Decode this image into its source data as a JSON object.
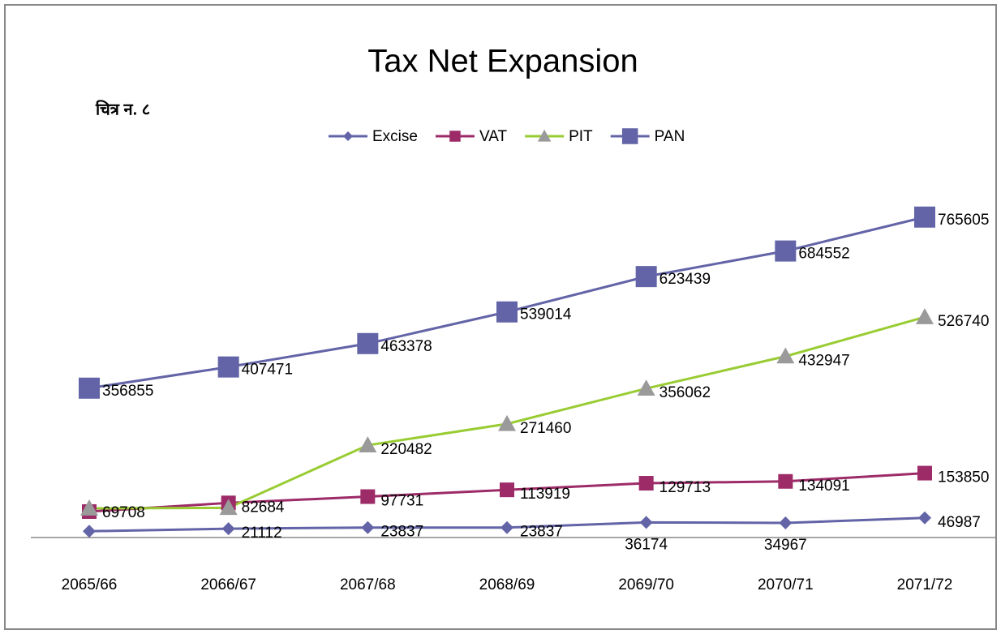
{
  "chart_data": {
    "type": "line",
    "title": "Tax Net Expansion",
    "annotation": "चित्र न. ८",
    "categories": [
      "2065/66",
      "2066/67",
      "2067/68",
      "2068/69",
      "2069/70",
      "2070/71",
      "2071/72"
    ],
    "ylim": [
      0,
      800000
    ],
    "legend": "top",
    "series": [
      {
        "name": "Excise",
        "color": "#6264a7",
        "marker": "diamond",
        "values": [
          15000,
          21112,
          23837,
          23837,
          36174,
          34967,
          46987
        ],
        "value_labels": [
          null,
          "21112",
          "23837",
          "23837",
          "36174",
          "34967",
          "46987"
        ]
      },
      {
        "name": "VAT",
        "color": "#9c2b68",
        "marker": "square",
        "values": [
          62000,
          82684,
          97731,
          113919,
          129713,
          134091,
          153850
        ],
        "value_labels": [
          null,
          "82684",
          "97731",
          "113919",
          "129713",
          "134091",
          "153850"
        ]
      },
      {
        "name": "PIT",
        "color": "#99cc33",
        "marker": "triangle",
        "values": [
          69708,
          71000,
          220482,
          271460,
          356062,
          432947,
          526740
        ],
        "value_labels": [
          "69708",
          null,
          "220482",
          "271460",
          "356062",
          "432947",
          "526740"
        ]
      },
      {
        "name": "PAN",
        "color": "#6264a7",
        "marker": "bigsquare",
        "values": [
          356855,
          407471,
          463378,
          539014,
          623439,
          684552,
          765605
        ],
        "value_labels": [
          "356855",
          "407471",
          "463378",
          "539014",
          "623439",
          "684552",
          "765605"
        ]
      }
    ]
  }
}
